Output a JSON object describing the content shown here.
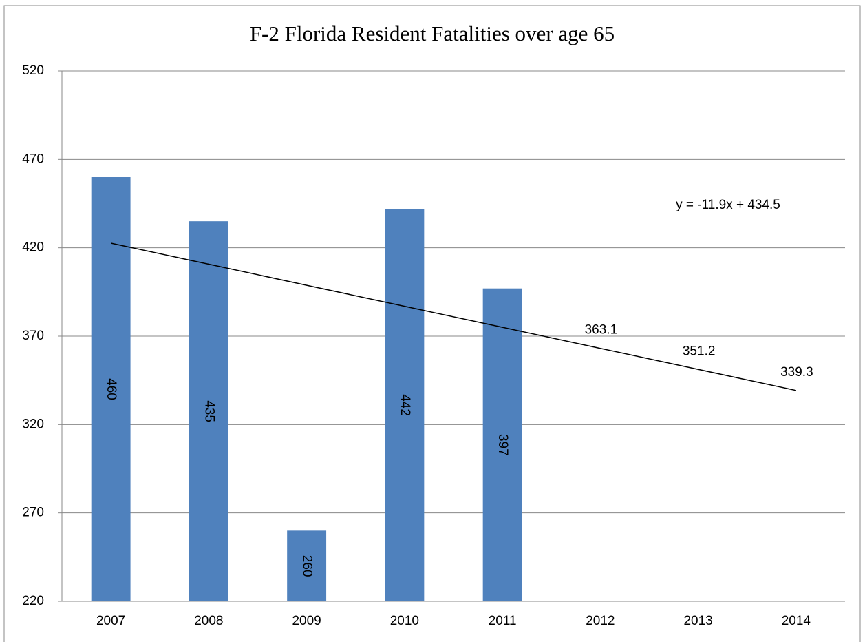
{
  "chart_data": {
    "type": "bar",
    "title": "F-2 Florida Resident Fatalities over age 65",
    "categories": [
      "2007",
      "2008",
      "2009",
      "2010",
      "2011",
      "2012",
      "2013",
      "2014"
    ],
    "series": [
      {
        "name": "Fatalities",
        "color": "#4f81bd",
        "values": [
          460,
          435,
          260,
          442,
          397,
          null,
          null,
          null
        ]
      },
      {
        "name": "Linear trend",
        "color": "#000000",
        "type": "line",
        "values": [
          422.6,
          410.7,
          398.8,
          386.9,
          375.0,
          363.1,
          351.2,
          339.3
        ],
        "value_labels": [
          null,
          null,
          null,
          null,
          null,
          "363.1",
          "351.2",
          "339.3"
        ]
      }
    ],
    "trendline_label": "y = -11.9x + 434.5",
    "ylim": [
      220,
      520
    ],
    "yticks": [
      220,
      270,
      320,
      370,
      420,
      470,
      520
    ],
    "grid": true
  }
}
